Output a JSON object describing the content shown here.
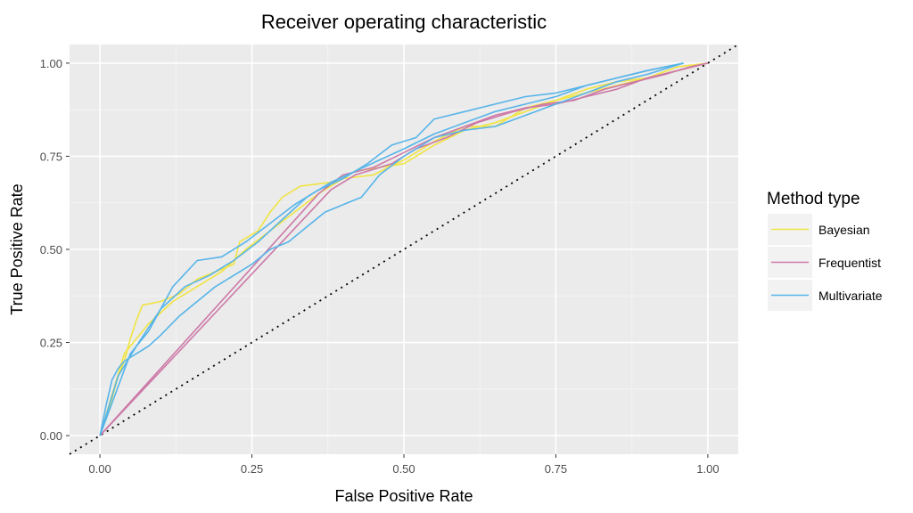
{
  "chart_data": {
    "type": "line",
    "title": "Receiver operating characteristic",
    "xlabel": "False Positive Rate",
    "ylabel": "True Positive Rate",
    "xlim": [
      -0.05,
      1.05
    ],
    "ylim": [
      -0.05,
      1.05
    ],
    "xticks": [
      0,
      0.25,
      0.5,
      0.75,
      1
    ],
    "yticks": [
      0,
      0.25,
      0.5,
      0.75,
      1
    ],
    "xtick_labels": [
      "0.00",
      "0.25",
      "0.50",
      "0.75",
      "1.00"
    ],
    "ytick_labels": [
      "0.00",
      "0.25",
      "0.50",
      "0.75",
      "1.00"
    ],
    "grid": true,
    "legend": {
      "title": "Method type",
      "position": "right"
    },
    "reference_line": {
      "style": "dotted",
      "from": [
        -0.05,
        -0.05
      ],
      "to": [
        1.05,
        1.05
      ]
    },
    "series": [
      {
        "name": "Bayesian",
        "color": "#f0e442",
        "points": [
          [
            0,
            0
          ],
          [
            0.02,
            0.1
          ],
          [
            0.03,
            0.16
          ],
          [
            0.04,
            0.2
          ],
          [
            0.05,
            0.26
          ],
          [
            0.06,
            0.31
          ],
          [
            0.07,
            0.35
          ],
          [
            0.1,
            0.36
          ],
          [
            0.13,
            0.38
          ],
          [
            0.16,
            0.42
          ],
          [
            0.19,
            0.44
          ],
          [
            0.22,
            0.46
          ],
          [
            0.23,
            0.52
          ],
          [
            0.26,
            0.55
          ],
          [
            0.28,
            0.6
          ],
          [
            0.3,
            0.64
          ],
          [
            0.33,
            0.67
          ],
          [
            0.38,
            0.68
          ],
          [
            0.42,
            0.71
          ],
          [
            0.46,
            0.72
          ],
          [
            0.5,
            0.73
          ],
          [
            0.55,
            0.78
          ],
          [
            0.6,
            0.82
          ],
          [
            0.65,
            0.84
          ],
          [
            0.7,
            0.87
          ],
          [
            0.75,
            0.9
          ],
          [
            0.8,
            0.93
          ],
          [
            0.85,
            0.95
          ],
          [
            0.9,
            0.96
          ],
          [
            0.95,
            0.99
          ],
          [
            1.0,
            1.0
          ]
        ]
      },
      {
        "name": "Bayesian",
        "color": "#f0e442",
        "points": [
          [
            0,
            0
          ],
          [
            0.04,
            0.22
          ],
          [
            0.08,
            0.3
          ],
          [
            0.12,
            0.36
          ],
          [
            0.16,
            0.4
          ],
          [
            0.2,
            0.44
          ],
          [
            0.24,
            0.5
          ],
          [
            0.28,
            0.55
          ],
          [
            0.32,
            0.6
          ],
          [
            0.36,
            0.65
          ],
          [
            0.4,
            0.69
          ],
          [
            0.45,
            0.7
          ],
          [
            0.5,
            0.74
          ],
          [
            0.55,
            0.79
          ],
          [
            0.6,
            0.83
          ],
          [
            0.65,
            0.83
          ],
          [
            0.7,
            0.88
          ],
          [
            0.75,
            0.9
          ],
          [
            0.8,
            0.92
          ],
          [
            0.85,
            0.94
          ],
          [
            0.9,
            0.96
          ],
          [
            0.95,
            0.98
          ],
          [
            1.0,
            1.0
          ]
        ]
      },
      {
        "name": "Frequentist",
        "color": "#cc79a7",
        "points": [
          [
            0,
            0
          ],
          [
            0.36,
            0.65
          ],
          [
            0.4,
            0.7
          ],
          [
            0.45,
            0.72
          ],
          [
            0.5,
            0.76
          ],
          [
            0.55,
            0.8
          ],
          [
            0.6,
            0.83
          ],
          [
            0.65,
            0.86
          ],
          [
            0.7,
            0.88
          ],
          [
            0.75,
            0.89
          ],
          [
            0.8,
            0.91
          ],
          [
            0.85,
            0.93
          ],
          [
            0.9,
            0.96
          ],
          [
            0.95,
            0.98
          ],
          [
            1.0,
            1.0
          ]
        ]
      },
      {
        "name": "Frequentist",
        "color": "#cc79a7",
        "points": [
          [
            0,
            0
          ],
          [
            0.38,
            0.66
          ],
          [
            0.42,
            0.7
          ],
          [
            0.48,
            0.73
          ],
          [
            0.52,
            0.77
          ],
          [
            0.57,
            0.8
          ],
          [
            0.62,
            0.84
          ],
          [
            0.68,
            0.87
          ],
          [
            0.73,
            0.89
          ],
          [
            0.78,
            0.9
          ],
          [
            0.83,
            0.93
          ],
          [
            0.88,
            0.95
          ],
          [
            0.93,
            0.97
          ],
          [
            0.97,
            0.99
          ],
          [
            1.0,
            1.0
          ]
        ]
      },
      {
        "name": "Multivariate",
        "color": "#56b4e9",
        "points": [
          [
            0,
            0
          ],
          [
            0.01,
            0.08
          ],
          [
            0.02,
            0.15
          ],
          [
            0.03,
            0.18
          ],
          [
            0.04,
            0.2
          ],
          [
            0.06,
            0.22
          ],
          [
            0.08,
            0.24
          ],
          [
            0.1,
            0.27
          ],
          [
            0.13,
            0.32
          ],
          [
            0.16,
            0.36
          ],
          [
            0.19,
            0.4
          ],
          [
            0.22,
            0.43
          ],
          [
            0.25,
            0.46
          ],
          [
            0.28,
            0.5
          ],
          [
            0.31,
            0.52
          ],
          [
            0.34,
            0.56
          ],
          [
            0.37,
            0.6
          ],
          [
            0.4,
            0.62
          ],
          [
            0.43,
            0.64
          ],
          [
            0.46,
            0.7
          ],
          [
            0.5,
            0.75
          ],
          [
            0.55,
            0.8
          ],
          [
            0.6,
            0.82
          ],
          [
            0.65,
            0.83
          ],
          [
            0.7,
            0.86
          ],
          [
            0.75,
            0.89
          ],
          [
            0.8,
            0.92
          ],
          [
            0.85,
            0.95
          ],
          [
            0.9,
            0.97
          ],
          [
            0.96,
            1.0
          ]
        ]
      },
      {
        "name": "Multivariate",
        "color": "#56b4e9",
        "points": [
          [
            0,
            0
          ],
          [
            0.05,
            0.22
          ],
          [
            0.08,
            0.28
          ],
          [
            0.12,
            0.4
          ],
          [
            0.16,
            0.47
          ],
          [
            0.2,
            0.48
          ],
          [
            0.24,
            0.52
          ],
          [
            0.28,
            0.57
          ],
          [
            0.32,
            0.62
          ],
          [
            0.36,
            0.66
          ],
          [
            0.4,
            0.69
          ],
          [
            0.44,
            0.73
          ],
          [
            0.48,
            0.78
          ],
          [
            0.52,
            0.8
          ],
          [
            0.55,
            0.85
          ],
          [
            0.6,
            0.87
          ],
          [
            0.65,
            0.89
          ],
          [
            0.7,
            0.91
          ],
          [
            0.75,
            0.92
          ],
          [
            0.8,
            0.94
          ],
          [
            0.85,
            0.96
          ],
          [
            0.9,
            0.98
          ],
          [
            0.96,
            1.0
          ]
        ]
      },
      {
        "name": "Multivariate",
        "color": "#56b4e9",
        "points": [
          [
            0,
            0
          ],
          [
            0.03,
            0.16
          ],
          [
            0.06,
            0.24
          ],
          [
            0.1,
            0.34
          ],
          [
            0.14,
            0.4
          ],
          [
            0.18,
            0.43
          ],
          [
            0.22,
            0.47
          ],
          [
            0.26,
            0.52
          ],
          [
            0.3,
            0.58
          ],
          [
            0.34,
            0.64
          ],
          [
            0.38,
            0.68
          ],
          [
            0.42,
            0.71
          ],
          [
            0.46,
            0.74
          ],
          [
            0.5,
            0.77
          ],
          [
            0.55,
            0.81
          ],
          [
            0.6,
            0.84
          ],
          [
            0.65,
            0.87
          ],
          [
            0.7,
            0.89
          ],
          [
            0.75,
            0.91
          ],
          [
            0.8,
            0.94
          ],
          [
            0.85,
            0.96
          ],
          [
            0.9,
            0.98
          ],
          [
            0.96,
            1.0
          ]
        ]
      }
    ]
  }
}
